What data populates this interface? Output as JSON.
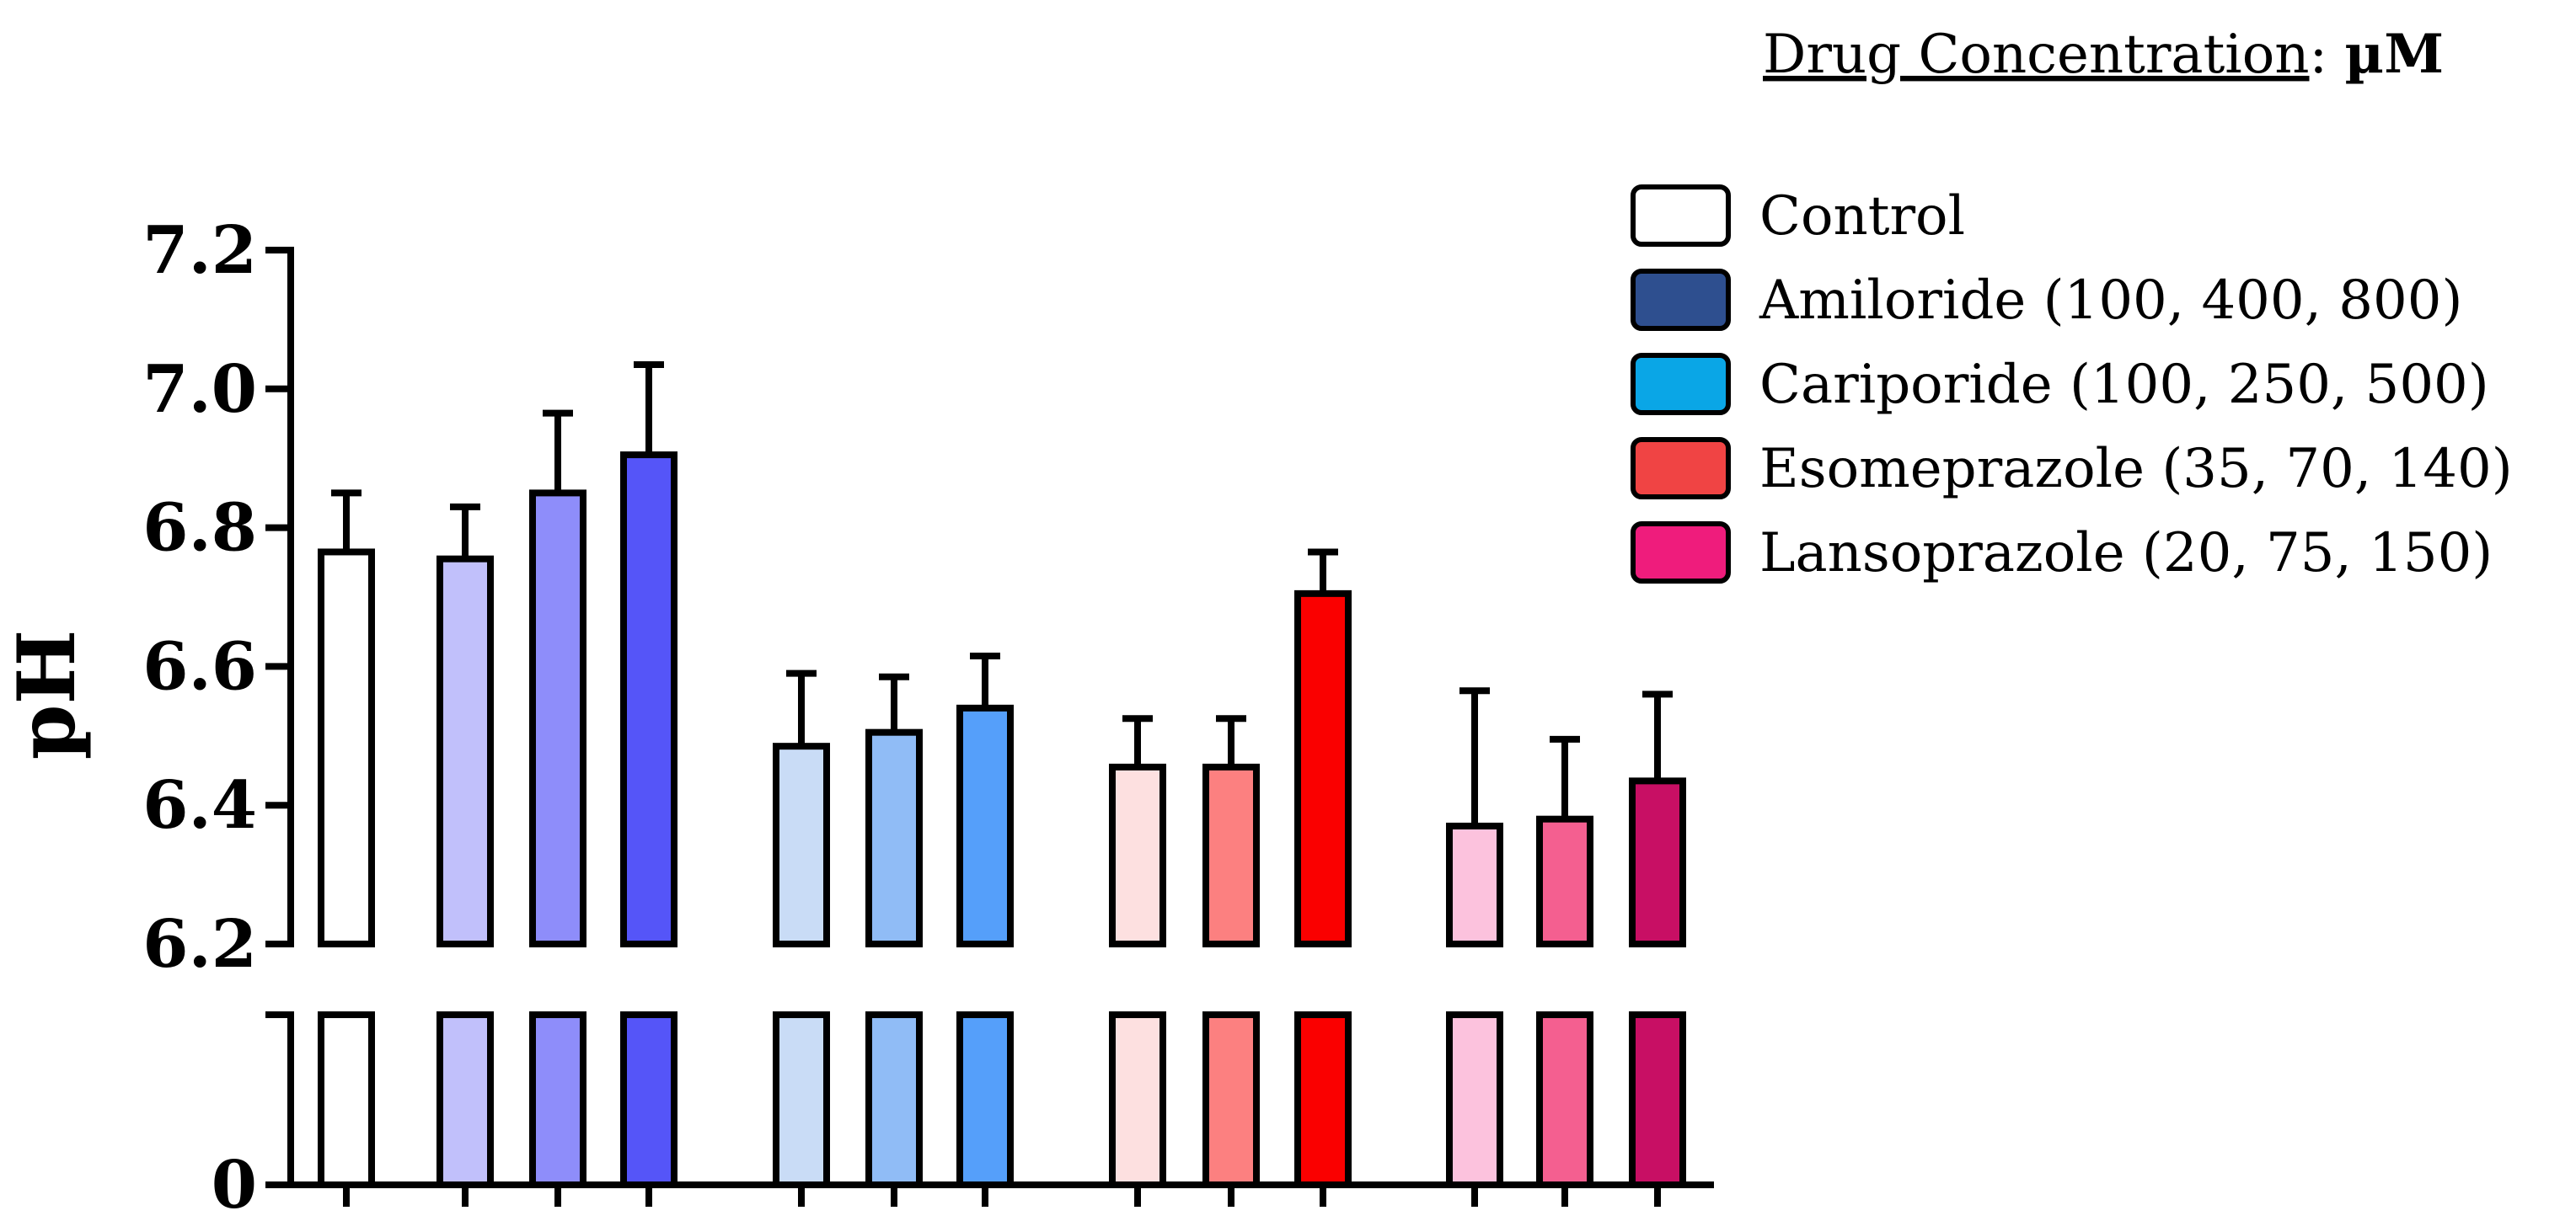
{
  "chart_data": {
    "type": "bar",
    "title": "",
    "xlabel": "",
    "ylabel": "pH",
    "ylim": [
      6.2,
      7.2
    ],
    "axis_break": {
      "lower_value": 0,
      "upper_start": 6.2
    },
    "yticks": [
      7.2,
      7.0,
      6.8,
      6.6,
      6.4,
      6.2
    ],
    "ytick_labels": [
      "7.2",
      "7.0",
      "6.8",
      "6.6",
      "6.4",
      "6.2"
    ],
    "lower_tick_label": "0",
    "legend": {
      "title_prefix": "Drug Concentration",
      "title_sep": ":",
      "title_unit": "µM",
      "placement": "top-right",
      "entries": [
        {
          "label": "Control",
          "color": "#ffffff"
        },
        {
          "label": "Amiloride (100, 400, 800)",
          "color": "#2e4f8f"
        },
        {
          "label": "Cariporide (100, 250, 500)",
          "color": "#0aa6e6"
        },
        {
          "label": "Esomeprazole (35, 70, 140)",
          "color": "#f04444"
        },
        {
          "label": "Lansoprazole (20, 75, 150)",
          "color": "#ef1c7c"
        }
      ]
    },
    "bars": [
      {
        "group": "Control",
        "dose": "",
        "value": 6.765,
        "error": 0.085,
        "color": "#ffffff"
      },
      {
        "group": "Amiloride",
        "dose": "100",
        "value": 6.755,
        "error": 0.075,
        "color": "#c1c0fb"
      },
      {
        "group": "Amiloride",
        "dose": "400",
        "value": 6.85,
        "error": 0.115,
        "color": "#8e8dfa"
      },
      {
        "group": "Amiloride",
        "dose": "800",
        "value": 6.905,
        "error": 0.13,
        "color": "#5555f8"
      },
      {
        "group": "Cariporide",
        "dose": "100",
        "value": 6.485,
        "error": 0.105,
        "color": "#c9dcf6"
      },
      {
        "group": "Cariporide",
        "dose": "250",
        "value": 6.505,
        "error": 0.08,
        "color": "#90bcf6"
      },
      {
        "group": "Cariporide",
        "dose": "500",
        "value": 6.54,
        "error": 0.075,
        "color": "#559ffa"
      },
      {
        "group": "Esomeprazole",
        "dose": "35",
        "value": 6.455,
        "error": 0.07,
        "color": "#fde0e0"
      },
      {
        "group": "Esomeprazole",
        "dose": "70",
        "value": 6.455,
        "error": 0.07,
        "color": "#fc8080"
      },
      {
        "group": "Esomeprazole",
        "dose": "140",
        "value": 6.705,
        "error": 0.06,
        "color": "#fa0000"
      },
      {
        "group": "Lansoprazole",
        "dose": "20",
        "value": 6.37,
        "error": 0.195,
        "color": "#fcc2dd"
      },
      {
        "group": "Lansoprazole",
        "dose": "75",
        "value": 6.38,
        "error": 0.115,
        "color": "#f45f90"
      },
      {
        "group": "Lansoprazole",
        "dose": "150",
        "value": 6.435,
        "error": 0.125,
        "color": "#c80f64"
      }
    ]
  }
}
